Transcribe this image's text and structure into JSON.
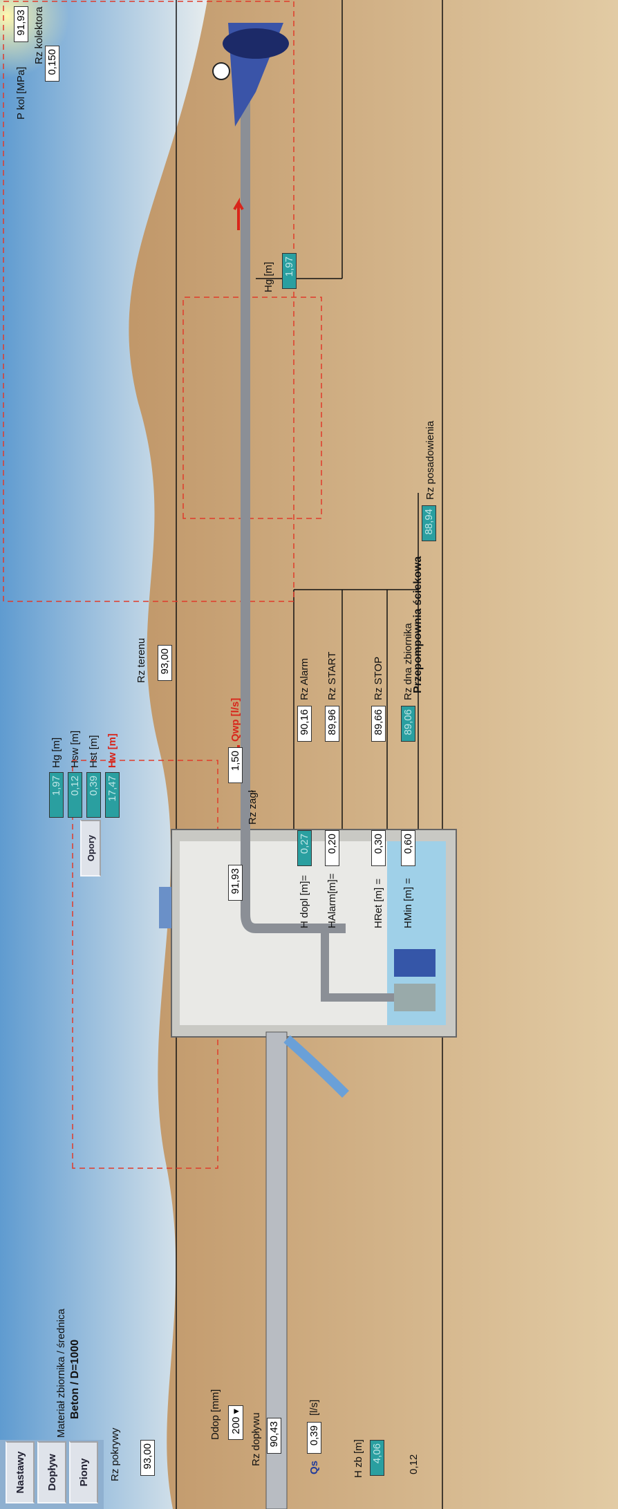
{
  "buttons": [
    "Nastawy",
    "Dopływ",
    "Piony"
  ],
  "title": "Przepompownia ściekowa",
  "material": {
    "label": "Materiał zbiornika / średnica",
    "value": "Beton / D=1000"
  },
  "rz_pokrywy": {
    "label": "Rz pokrywy",
    "value": "93,00"
  },
  "rz_terenu": {
    "label": "Rz terenu",
    "value": "93,00"
  },
  "ddop": {
    "label": "Ddop [mm]",
    "value": "200"
  },
  "rz_doplywu": {
    "label": "Rz dopływu",
    "value": "90,43"
  },
  "qs": {
    "label": "Qs",
    "value": "0,39",
    "unit": "[l/s]"
  },
  "h_zb": {
    "label": "H zb [m]",
    "value": "4,06"
  },
  "bottom_offset": "0,12",
  "summary": [
    {
      "value": "1,97",
      "label": "Hg [m]"
    },
    {
      "value": "0,12",
      "label": "Hsw [m]"
    },
    {
      "value": "0,39",
      "label": "Hst [m]"
    },
    {
      "value": "17,47",
      "label": "Hw [m]"
    }
  ],
  "opory": "Opory",
  "rz_zagl": {
    "label": "Rz zagł",
    "value": "91,93"
  },
  "qwp": {
    "label": "Qwp [l/s]",
    "value": "1,50"
  },
  "settings": [
    {
      "label": "H dopl [m]=",
      "value": "0,27"
    },
    {
      "label": "HAlarm[m]=",
      "value": "0,20"
    },
    {
      "label": "HRet [m] =",
      "value": "0,30"
    },
    {
      "label": "HMin [m] =",
      "value": "0,60"
    }
  ],
  "levels": [
    {
      "value": "90,16",
      "label": "Rz Alarm"
    },
    {
      "value": "89,96",
      "label": "Rz START"
    },
    {
      "value": "89,66",
      "label": "Rz STOP"
    },
    {
      "value": "89,06",
      "label": "Rz dna zbiornika"
    },
    {
      "value": "88,94",
      "label": "Rz posadowienia"
    }
  ],
  "hg": {
    "label": "Hg [m]",
    "value": "1,97"
  },
  "p_kol": {
    "label": "P kol [MPa]",
    "value": "0,150"
  },
  "rz_kolektora": {
    "label": "Rz kolektora",
    "value": "91,93"
  }
}
